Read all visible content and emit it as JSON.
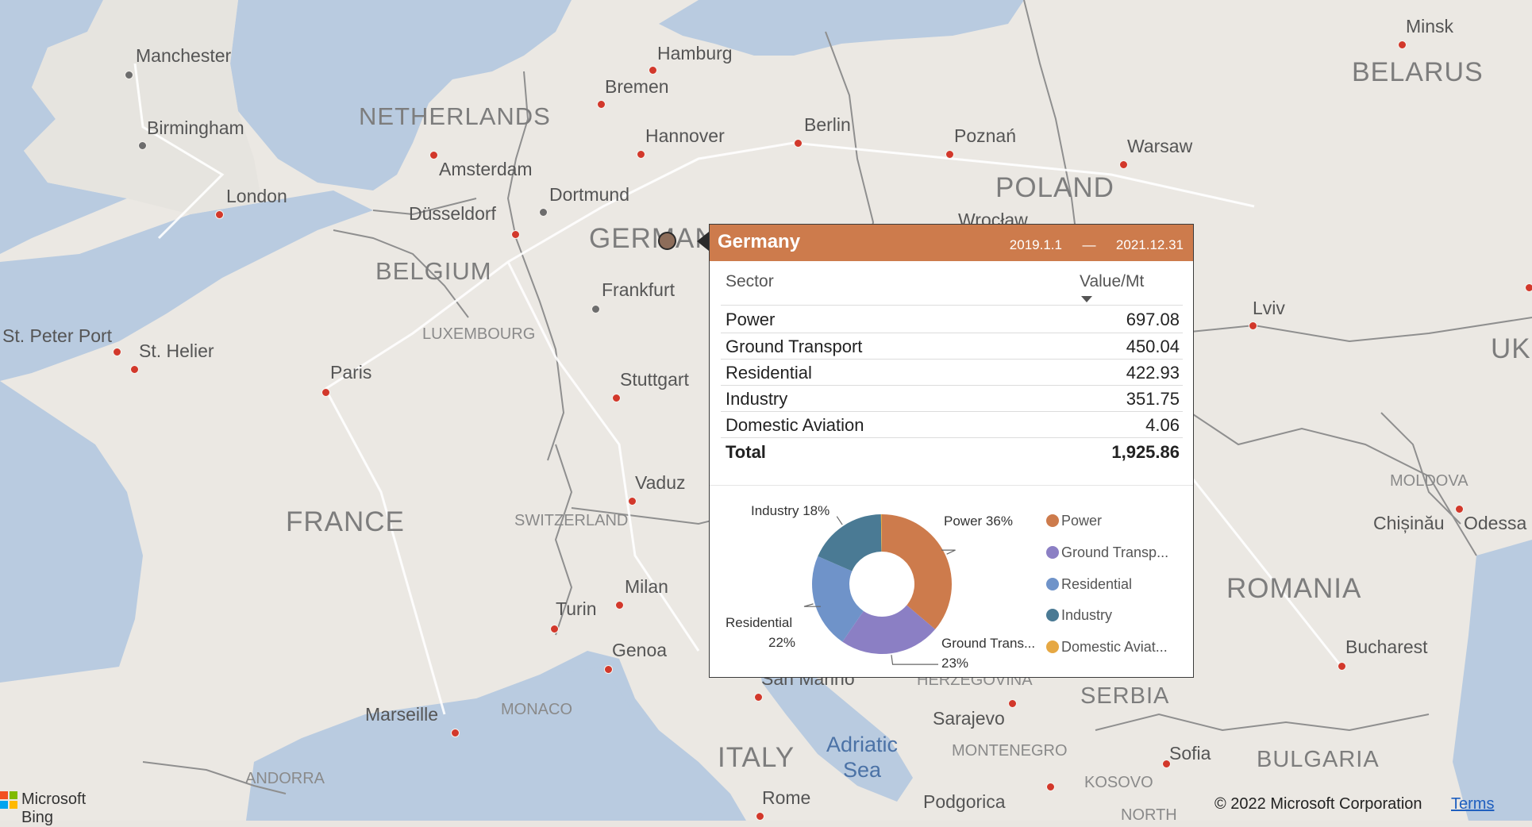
{
  "map": {
    "water_color": "#b9cbe0",
    "land_color": "#ebe8e3",
    "border_color": "#8f8f8f",
    "road_color": "#ffffff",
    "city_labels": [
      "Manchester",
      "Birmingham",
      "London",
      "St. Peter Port",
      "St. Helier",
      "Paris",
      "Hamburg",
      "Bremen",
      "Hannover",
      "Berlin",
      "Amsterdam",
      "Dortmund",
      "Düsseldorf",
      "Frankfurt",
      "Stuttgart",
      "Vaduz",
      "Milan",
      "Turin",
      "Genoa",
      "Marseille",
      "San Marino",
      "Adriatic Sea",
      "Sarajevo",
      "Rome",
      "Podgorica",
      "Poznań",
      "Wrocław",
      "Warsaw",
      "Lviv",
      "Minsk",
      "Chișinău",
      "Odessa",
      "Bucharest",
      "Sofia"
    ],
    "country_labels": [
      "NETHERLANDS",
      "BELGIUM",
      "GERMANY",
      "POLAND",
      "BELARUS",
      "FRANCE",
      "ROMANIA",
      "SERBIA",
      "BULGARIA",
      "ITALY",
      "UKR"
    ],
    "micro_labels": [
      "LUXEMBOURG",
      "SWITZERLAND",
      "MONACO",
      "ANDORRA",
      "MOLDOVA",
      "HERZEGOVINA",
      "MONTENEGRO",
      "KOSOVO",
      "NORTH"
    ]
  },
  "tooltip": {
    "title": "Germany",
    "date_start": "2019.1.1",
    "date_sep": "—",
    "date_end": "2021.12.31",
    "header_color": "#cd7b4c",
    "col_sector": "Sector",
    "col_value": "Value/Mt",
    "sort_icon": "sort-descending-icon",
    "rows": [
      {
        "sector": "Power",
        "value": "697.08"
      },
      {
        "sector": "Ground Transport",
        "value": "450.04"
      },
      {
        "sector": "Residential",
        "value": "422.93"
      },
      {
        "sector": "Industry",
        "value": "351.75"
      },
      {
        "sector": "Domestic Aviation",
        "value": "4.06"
      }
    ],
    "total_label": "Total",
    "total_value": "1,925.86"
  },
  "chart_data": {
    "type": "pie",
    "donut": true,
    "title": "",
    "categories": [
      "Power",
      "Ground Transport",
      "Residential",
      "Industry",
      "Domestic Aviation"
    ],
    "values": [
      697.08,
      450.04,
      422.93,
      351.75,
      4.06
    ],
    "percent_labels": [
      "Power 36%",
      "Ground Trans...",
      "23%",
      "Residential",
      "22%",
      "Industry 18%"
    ],
    "legend": [
      "Power",
      "Ground Transp...",
      "Residential",
      "Industry",
      "Domestic Aviat..."
    ],
    "legend_placement": "right",
    "colors": [
      "#cd7b4c",
      "#8b7fc4",
      "#6f93c9",
      "#4a7a94",
      "#e6a843"
    ]
  },
  "footer": {
    "logo_text": "Microsoft Bing",
    "logo_colors": [
      "#f25022",
      "#7fba00",
      "#00a4ef",
      "#ffb900"
    ],
    "copyright": "© 2022 Microsoft Corporation",
    "terms": "Terms"
  }
}
